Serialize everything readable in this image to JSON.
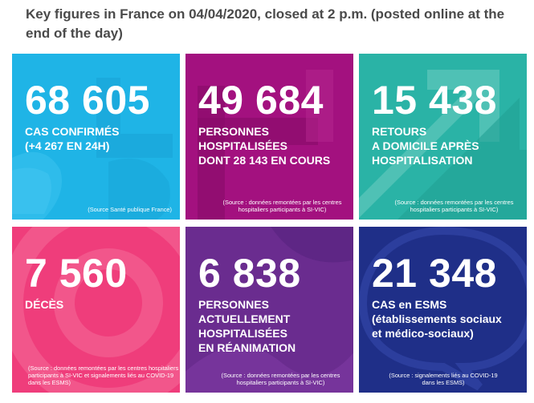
{
  "heading": "Key figures in France on 04/04/2020, closed at 2 p.m. (posted online at the end of the day)",
  "colors": {
    "cyan": "#1fb4e6",
    "magenta": "#a3117f",
    "teal": "#2ab3a6",
    "pink": "#ef3d7b",
    "purple": "#6a2c8f",
    "navy": "#1f2f88"
  },
  "cards": [
    {
      "number": "68 605",
      "label_lines": [
        "CAS CONFIRMÉS",
        "(+4 267 EN 24H)"
      ],
      "source": "(Source Santé publique France)",
      "decoration": "number-20-shape"
    },
    {
      "number": "49 684",
      "label_lines": [
        "PERSONNES",
        "HOSPITALISÉES",
        "DONT 28 143 EN COURS"
      ],
      "source": "(Source : données remontées par les centres hospitaliers participants à SI-VIC)",
      "decoration": "hospital-cross-shape"
    },
    {
      "number": "15 438",
      "label_lines": [
        "RETOURS",
        "A DOMICILE APRÈS",
        "HOSPITALISATION"
      ],
      "source": "(Source : données remontées par les centres hospitaliers participants à SI-VIC)",
      "decoration": "diagonal-arrows-shape"
    },
    {
      "number": "7 560",
      "label_lines": [
        "DÉCÈS"
      ],
      "source": "(Source : données remontées par les centres hospitaliers participants à SI-VIC et signalements liés au COVID-19 dans les ESMS)",
      "decoration": "concentric-circles-shape"
    },
    {
      "number": "6 838",
      "label_lines": [
        "PERSONNES",
        "ACTUELLEMENT",
        "HOSPITALISÉES",
        "EN RÉANIMATION"
      ],
      "source": "(Source : données remontées par les centres hospitaliers participants à SI-VIC)",
      "decoration": "wave-shape"
    },
    {
      "number": "21 348",
      "label_lines": [
        "CAS en ESMS",
        "(établissements sociaux",
        "et médico-sociaux)"
      ],
      "source": "(Source : signalements liés au COVID-19 dans les ESMS)",
      "decoration": "speech-bubble-shape"
    }
  ]
}
